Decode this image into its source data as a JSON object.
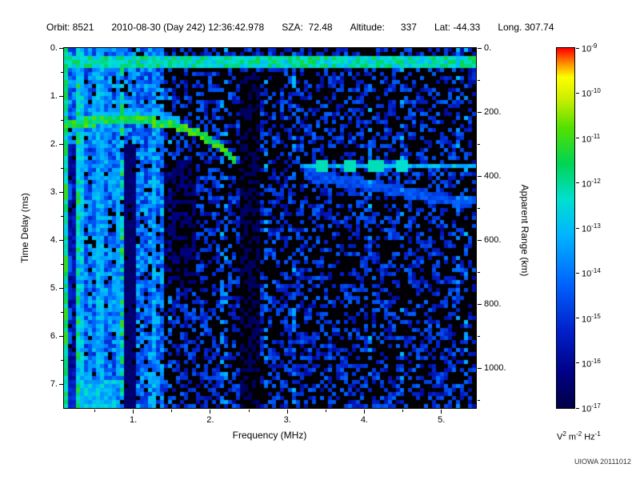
{
  "header": {
    "segments": [
      "Orbit: 8521",
      "2010-08-30 (Day 242) 12:36:42.978",
      "SZA:  72.48",
      "Altitude:      337",
      "Lat: -44.33",
      "Long. 307.74"
    ]
  },
  "watermark": "UIOWA 20111012",
  "chart_data": {
    "type": "heatmap",
    "title": "",
    "xlabel": "Frequency (MHz)",
    "ylabel_left": "Time Delay (ms)",
    "ylabel_right": "Apparent Range (km)",
    "x_range_mhz": [
      0.1,
      5.45
    ],
    "y_range_ms": [
      0,
      7.5
    ],
    "right_axis_range_km": [
      0,
      1125
    ],
    "grid": false,
    "x_ticks": [
      {
        "f": 1,
        "label": "1."
      },
      {
        "f": 2,
        "label": "2."
      },
      {
        "f": 3,
        "label": "3."
      },
      {
        "f": 4,
        "label": "4."
      },
      {
        "f": 5,
        "label": "5."
      }
    ],
    "x_minor_ticks": [
      0.5,
      1.5,
      2.5,
      3.5,
      4.5
    ],
    "y_ticks": [
      {
        "ms": 0,
        "label": "0."
      },
      {
        "ms": 1,
        "label": "1."
      },
      {
        "ms": 2,
        "label": "2."
      },
      {
        "ms": 3,
        "label": "3."
      },
      {
        "ms": 4,
        "label": "4."
      },
      {
        "ms": 5,
        "label": "5."
      },
      {
        "ms": 6,
        "label": "6."
      },
      {
        "ms": 7,
        "label": "7."
      }
    ],
    "y_minor_ticks": [
      0.5,
      1.5,
      2.5,
      3.5,
      4.5,
      5.5,
      6.5
    ],
    "right_ticks": [
      {
        "km": 0,
        "label": "0."
      },
      {
        "km": 200,
        "label": "200."
      },
      {
        "km": 400,
        "label": "400."
      },
      {
        "km": 600,
        "label": "600."
      },
      {
        "km": 800,
        "label": "800."
      },
      {
        "km": 1000,
        "label": "1000."
      }
    ],
    "right_minor_ticks": [
      100,
      300,
      500,
      700,
      900,
      1100
    ],
    "colorbar": {
      "unit_parts": [
        [
          "V",
          "2"
        ],
        [
          "m",
          "-2"
        ],
        [
          "Hz",
          "-1"
        ]
      ],
      "tick_exponents": [
        "-9",
        "-10",
        "-11",
        "-12",
        "-13",
        "-14",
        "-15",
        "-16",
        "-17"
      ],
      "stops": [
        [
          0.0,
          "#000046"
        ],
        [
          0.1,
          "#000085"
        ],
        [
          0.22,
          "#0022cc"
        ],
        [
          0.35,
          "#0066ff"
        ],
        [
          0.48,
          "#00b4ff"
        ],
        [
          0.58,
          "#00e0d0"
        ],
        [
          0.68,
          "#00d455"
        ],
        [
          0.78,
          "#55e000"
        ],
        [
          0.86,
          "#ccee00"
        ],
        [
          0.92,
          "#ffff00"
        ],
        [
          0.96,
          "#ff8800"
        ],
        [
          1.0,
          "#ff0000"
        ]
      ]
    },
    "noise": {
      "seed": 20111012,
      "left_max_f": 1.38,
      "left_black_prob": 0.1,
      "left_base": 0.22,
      "left_rand": 0.3,
      "right_black_prob": 0.52,
      "right_black_slope": 0.02,
      "right_base": 0.13,
      "right_rand": 0.22,
      "col_boost_prob": 0.15,
      "col_boost": 1.45
    },
    "features": [
      {
        "type": "hband",
        "t": 0.28,
        "halfwidth": 0.14,
        "f0": 0.1,
        "f1": 5.45,
        "v": 0.6,
        "jitter": 0.22,
        "note": "transmit pulse line at top"
      },
      {
        "type": "vband",
        "f": 0.13,
        "halfwidth": 0.035,
        "v": 0.62,
        "jitter": 0.18
      },
      {
        "type": "vband",
        "f": 0.31,
        "halfwidth": 0.03,
        "v": 0.5,
        "jitter": 0.2
      },
      {
        "type": "vband",
        "f": 0.57,
        "halfwidth": 0.035,
        "v": 0.45,
        "jitter": 0.2
      },
      {
        "type": "vband",
        "f": 0.78,
        "halfwidth": 0.025,
        "v": 0.4,
        "jitter": 0.2
      },
      {
        "type": "vband",
        "f": 1.27,
        "halfwidth": 0.05,
        "v": 0.42,
        "jitter": 0.25
      },
      {
        "type": "trace",
        "points": [
          [
            0.12,
            1.56
          ],
          [
            0.5,
            1.54
          ],
          [
            0.9,
            1.48
          ],
          [
            1.1,
            1.46
          ],
          [
            1.3,
            1.55
          ],
          [
            1.55,
            1.62
          ],
          [
            1.8,
            1.75
          ],
          [
            2.0,
            1.92
          ],
          [
            2.2,
            2.15
          ],
          [
            2.35,
            2.38
          ]
        ],
        "halfwidth": 0.09,
        "v": 0.7,
        "jitter": 0.18,
        "note": "ionospheric echo trace"
      },
      {
        "type": "trace",
        "points": [
          [
            0.45,
            1.38
          ],
          [
            0.9,
            1.32
          ],
          [
            1.3,
            1.38
          ],
          [
            1.6,
            1.5
          ]
        ],
        "halfwidth": 0.06,
        "v": 0.46,
        "jitter": 0.15
      },
      {
        "type": "hband",
        "t": 2.45,
        "halfwidth": 0.07,
        "f0": 3.15,
        "f1": 5.45,
        "v": 0.48,
        "jitter": 0.15,
        "note": "surface reflection near 400 km apparent range"
      },
      {
        "type": "trace",
        "points": [
          [
            3.2,
            2.62
          ],
          [
            4.2,
            2.9
          ],
          [
            5.4,
            3.25
          ]
        ],
        "halfwidth": 0.12,
        "v": 0.3,
        "jitter": 0.1
      },
      {
        "type": "hband",
        "t": 7.2,
        "halfwidth": 0.3,
        "f0": 0.1,
        "f1": 0.75,
        "v": 0.5,
        "jitter": 0.2
      },
      {
        "type": "dot",
        "f": 3.45,
        "t": 2.45,
        "rf": 0.08,
        "rt": 0.1,
        "v": 0.6
      },
      {
        "type": "dot",
        "f": 3.8,
        "t": 2.45,
        "rf": 0.08,
        "rt": 0.1,
        "v": 0.6
      },
      {
        "type": "dot",
        "f": 4.15,
        "t": 2.45,
        "rf": 0.08,
        "rt": 0.1,
        "v": 0.6
      },
      {
        "type": "dot",
        "f": 4.5,
        "t": 2.45,
        "rf": 0.08,
        "rt": 0.1,
        "v": 0.58
      },
      {
        "type": "dot",
        "f": 0.13,
        "t": 3.0,
        "rf": 0.05,
        "rt": 0.13,
        "v": 0.74
      },
      {
        "type": "dot",
        "f": 0.13,
        "t": 4.5,
        "rf": 0.05,
        "rt": 0.13,
        "v": 0.74
      },
      {
        "type": "dot",
        "f": 0.13,
        "t": 5.52,
        "rf": 0.05,
        "rt": 0.13,
        "v": 0.74
      },
      {
        "type": "dot",
        "f": 0.13,
        "t": 6.05,
        "rf": 0.05,
        "rt": 0.13,
        "v": 0.74
      },
      {
        "type": "dark",
        "f0": 0.17,
        "f1": 0.24,
        "t0": 2.0,
        "t1": 7.5,
        "strength": 0.55
      },
      {
        "type": "dark",
        "f0": 0.88,
        "f1": 1.04,
        "t0": 2.0,
        "t1": 7.5,
        "strength": 0.82
      },
      {
        "type": "dark",
        "f0": 2.38,
        "f1": 2.62,
        "t0": 0.5,
        "t1": 7.5,
        "strength": 0.85
      },
      {
        "type": "dark",
        "f0": 1.38,
        "f1": 1.82,
        "t0": 2.3,
        "t1": 5.0,
        "strength": 0.7
      }
    ]
  }
}
